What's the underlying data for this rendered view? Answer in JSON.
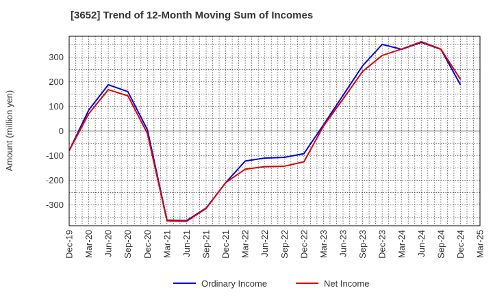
{
  "chart_data": {
    "type": "line",
    "title": "[3652]  Trend of 12-Month Moving Sum of Incomes",
    "ylabel": "Amount (million yen)",
    "xlabel": "",
    "ylim": [
      -385,
      385
    ],
    "yticks": [
      -300,
      -200,
      -100,
      0,
      100,
      200,
      300
    ],
    "grid": true,
    "legend_position": "bottom-center",
    "x": [
      "Dec-19",
      "Mar-20",
      "Jun-20",
      "Sep-20",
      "Dec-20",
      "Mar-21",
      "Jun-21",
      "Sep-21",
      "Dec-21",
      "Mar-22",
      "Jun-22",
      "Sep-22",
      "Dec-22",
      "Mar-23",
      "Jun-23",
      "Sep-23",
      "Dec-23",
      "Mar-24",
      "Jun-24",
      "Sep-24",
      "Dec-24",
      "Mar-25"
    ],
    "series": [
      {
        "name": "Ordinary Income",
        "color": "#0000dd",
        "values": [
          -80,
          85,
          188,
          160,
          5,
          -362,
          -364,
          -313,
          -210,
          -122,
          -110,
          -107,
          -92,
          25,
          145,
          265,
          352,
          332,
          360,
          332,
          188,
          null
        ]
      },
      {
        "name": "Net Income",
        "color": "#dd0000",
        "values": [
          -80,
          70,
          168,
          143,
          -10,
          -365,
          -367,
          -315,
          -210,
          -155,
          -145,
          -143,
          -125,
          20,
          130,
          242,
          307,
          333,
          363,
          333,
          210,
          null
        ]
      }
    ]
  }
}
